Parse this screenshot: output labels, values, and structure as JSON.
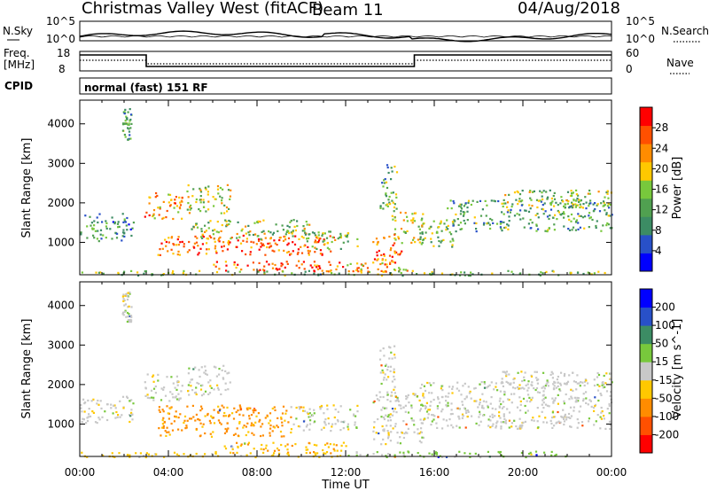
{
  "header": {
    "title": "Christmas Valley West (fitACF)",
    "beam": "Beam 11",
    "date": "04/Aug/2018"
  },
  "top_panels": {
    "nsky_label": "N.Sky",
    "nsky_ticks": [
      "10^5",
      "10^0"
    ],
    "nsearch_label": "N.Search",
    "nsearch_ticks": [
      "10^5",
      "10^0"
    ],
    "freq_label_1": "Freq.",
    "freq_label_2": "[MHz]",
    "freq_ticks": [
      "18",
      "8"
    ],
    "nave_label": "Nave",
    "nave_ticks": [
      "60",
      "0"
    ],
    "cpid_label": "CPID",
    "cpid_value": "normal (fast) 151 RF"
  },
  "colors": {
    "power_scale": [
      "#0000ff",
      "#2850c8",
      "#3c8c64",
      "#50a050",
      "#78c83c",
      "#ffc800",
      "#ff8c00",
      "#ff5000",
      "#ff0000"
    ],
    "velocity_scale": [
      "#ff0000",
      "#ff5000",
      "#ff8c00",
      "#ffc800",
      "#c8c8c8",
      "#78c83c",
      "#3c8c64",
      "#2850c8",
      "#0000ff"
    ],
    "velocity_dominant": "#c0c0c0"
  },
  "chart_data": [
    {
      "type": "heatmap",
      "parameter": "power",
      "ylabel": "Slant Range [km]",
      "xlabel": "Time UT",
      "x_ticks": [
        "00:00",
        "04:00",
        "08:00",
        "12:00",
        "16:00",
        "20:00",
        "00:00"
      ],
      "y_ticks": [
        1000,
        2000,
        3000,
        4000
      ],
      "ylim": [
        180,
        4600
      ],
      "colorbar_label": "Power [dB]",
      "colorbar_ticks": [
        4,
        8,
        12,
        16,
        20,
        24,
        28
      ],
      "colorbar_range": [
        0,
        32
      ],
      "regions": [
        {
          "t": [
            0.0,
            2.4
          ],
          "r": [
            1050,
            1750
          ],
          "value": 10
        },
        {
          "t": [
            2.9,
            4.6
          ],
          "r": [
            1600,
            2300
          ],
          "value": 22
        },
        {
          "t": [
            4.8,
            6.8
          ],
          "r": [
            1750,
            2500
          ],
          "value": 18
        },
        {
          "t": [
            3.5,
            11.5
          ],
          "r": [
            700,
            1200
          ],
          "value": 26
        },
        {
          "t": [
            5.0,
            10.5
          ],
          "r": [
            1100,
            1600
          ],
          "value": 16
        },
        {
          "t": [
            10.0,
            12.5
          ],
          "r": [
            850,
            1300
          ],
          "value": 14
        },
        {
          "t": [
            13.2,
            14.5
          ],
          "r": [
            500,
            1200
          ],
          "value": 25
        },
        {
          "t": [
            14.0,
            15.5
          ],
          "r": [
            1000,
            1800
          ],
          "value": 20
        },
        {
          "t": [
            15.3,
            17.0
          ],
          "r": [
            900,
            1600
          ],
          "value": 14
        },
        {
          "t": [
            16.5,
            24.0
          ],
          "r": [
            1300,
            2100
          ],
          "value": 12
        },
        {
          "t": [
            19.0,
            24.0
          ],
          "r": [
            1900,
            2350
          ],
          "value": 16
        },
        {
          "t": [
            6.0,
            12.0
          ],
          "r": [
            280,
            550
          ],
          "value": 27
        },
        {
          "t": [
            12.0,
            15.0
          ],
          "r": [
            250,
            500
          ],
          "value": 22
        },
        {
          "t": [
            0.0,
            24.0
          ],
          "r": [
            180,
            300
          ],
          "value": 14
        }
      ],
      "streaks": [
        {
          "t": [
            1.9,
            2.3
          ],
          "r": [
            3600,
            4400
          ],
          "value": 12
        },
        {
          "t": [
            13.5,
            14.3
          ],
          "r": [
            1800,
            3000
          ],
          "value": 12
        }
      ]
    },
    {
      "type": "heatmap",
      "parameter": "velocity",
      "ylabel": "Slant Range [km]",
      "xlabel": "Time UT",
      "x_ticks": [
        "00:00",
        "04:00",
        "08:00",
        "12:00",
        "16:00",
        "20:00",
        "00:00"
      ],
      "y_ticks": [
        1000,
        2000,
        3000,
        4000
      ],
      "ylim": [
        180,
        4600
      ],
      "colorbar_label": "Velocity [m s^-1]",
      "colorbar_ticks": [
        200,
        100,
        50,
        15,
        -15,
        -50,
        -100,
        -200
      ],
      "regions": [
        {
          "t": [
            0.0,
            2.4
          ],
          "r": [
            1050,
            1750
          ],
          "value": 0
        },
        {
          "t": [
            2.9,
            4.6
          ],
          "r": [
            1600,
            2300
          ],
          "value": 0
        },
        {
          "t": [
            4.8,
            6.8
          ],
          "r": [
            1750,
            2500
          ],
          "value": 0
        },
        {
          "t": [
            3.5,
            9.5
          ],
          "r": [
            700,
            1500
          ],
          "value": -60
        },
        {
          "t": [
            9.5,
            12.5
          ],
          "r": [
            850,
            1500
          ],
          "value": 0
        },
        {
          "t": [
            13.2,
            15.5
          ],
          "r": [
            500,
            1800
          ],
          "value": 0
        },
        {
          "t": [
            15.3,
            24.0
          ],
          "r": [
            900,
            2100
          ],
          "value": 0
        },
        {
          "t": [
            19.0,
            24.0
          ],
          "r": [
            1900,
            2350
          ],
          "value": 0
        },
        {
          "t": [
            6.0,
            12.0
          ],
          "r": [
            280,
            550
          ],
          "value": -40
        },
        {
          "t": [
            12.0,
            22.0
          ],
          "r": [
            180,
            330
          ],
          "value": 30
        },
        {
          "t": [
            0.0,
            12.0
          ],
          "r": [
            180,
            300
          ],
          "value": -30
        }
      ],
      "streaks": [
        {
          "t": [
            1.9,
            2.3
          ],
          "r": [
            3600,
            4400
          ],
          "value": 0
        },
        {
          "t": [
            13.5,
            14.3
          ],
          "r": [
            1800,
            3000
          ],
          "value": 0
        }
      ]
    }
  ]
}
